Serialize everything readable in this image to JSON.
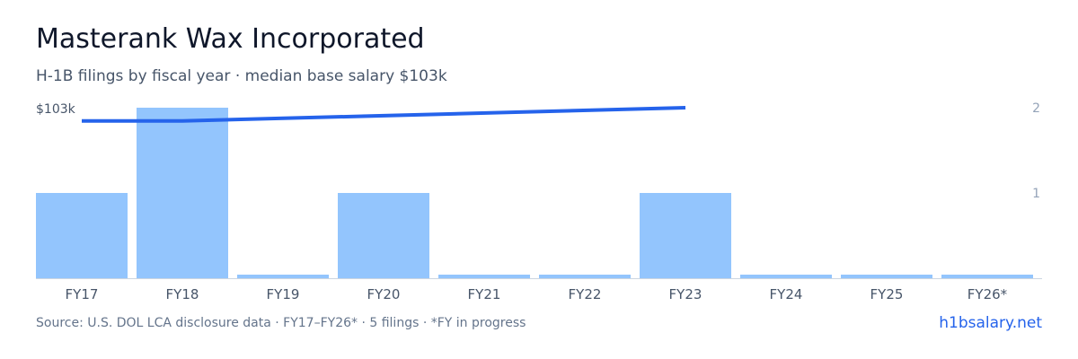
{
  "header": {
    "title": "Masterank Wax Incorporated",
    "subtitle": "H-1B filings by fiscal year · median base salary $103k"
  },
  "footer": {
    "source": "Source: U.S. DOL LCA disclosure data · FY17–FY26* · 5 filings · *FY in progress",
    "link": "h1bsalary.net"
  },
  "colors": {
    "bar": "#93c5fd",
    "line": "#2563eb",
    "axis_text": "#475569",
    "muted_text": "#94a3b8",
    "baseline": "#cbd5e1"
  },
  "chart_data": {
    "type": "bar",
    "categories": [
      "FY17",
      "FY18",
      "FY19",
      "FY20",
      "FY21",
      "FY22",
      "FY23",
      "FY24",
      "FY25",
      "FY26*"
    ],
    "series": [
      {
        "type": "bar",
        "axis": "right",
        "values": [
          1,
          2,
          0,
          1,
          0,
          0,
          1,
          0,
          0,
          0
        ]
      },
      {
        "type": "line",
        "axis": "left",
        "values": [
          null,
          null,
          null,
          null,
          null,
          null,
          null,
          null,
          null,
          null
        ]
      }
    ],
    "line_points": [
      {
        "category": "FY17",
        "value": 95000
      },
      {
        "category": "FY18",
        "value": 95000
      },
      {
        "category": "FY23",
        "value": 103000
      }
    ],
    "left_axis": {
      "tick_label": "$103k",
      "tick_value": 103000
    },
    "right_axis": {
      "ticks": [
        1,
        2
      ],
      "ylim": [
        0,
        2
      ]
    },
    "left_ylim": [
      0,
      103000
    ],
    "grid": false
  }
}
